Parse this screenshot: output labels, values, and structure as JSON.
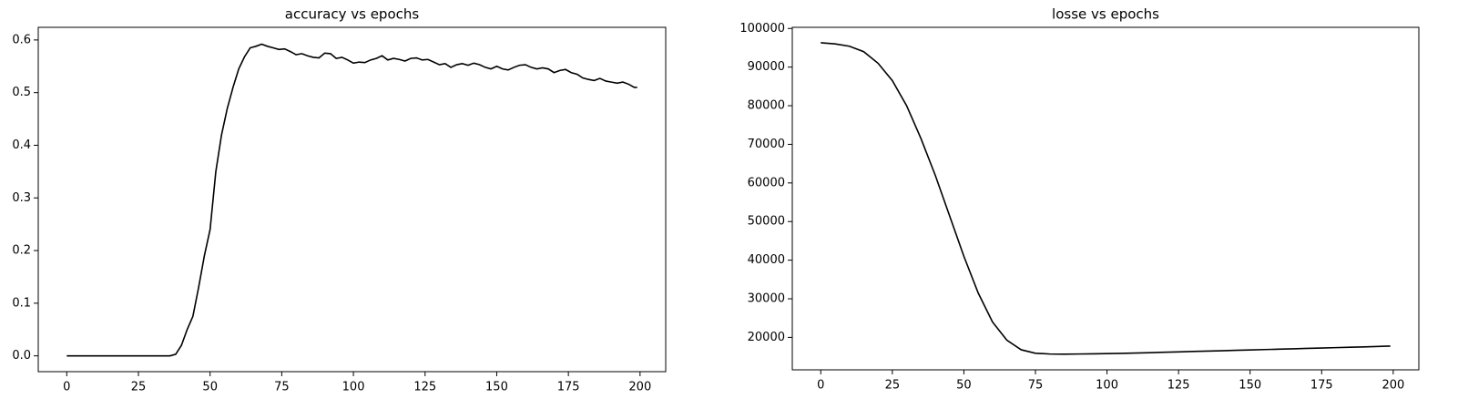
{
  "chart_data": [
    {
      "type": "line",
      "title": "accuracy vs epochs",
      "color": "#000000",
      "grid": false,
      "x": [
        0,
        2,
        4,
        6,
        8,
        10,
        12,
        14,
        16,
        18,
        20,
        22,
        24,
        26,
        28,
        30,
        32,
        34,
        36,
        38,
        40,
        42,
        44,
        46,
        48,
        50,
        52,
        54,
        56,
        58,
        60,
        62,
        64,
        66,
        68,
        70,
        72,
        74,
        76,
        78,
        80,
        82,
        84,
        86,
        88,
        90,
        92,
        94,
        96,
        98,
        100,
        102,
        104,
        106,
        108,
        110,
        112,
        114,
        116,
        118,
        120,
        122,
        124,
        126,
        128,
        130,
        132,
        134,
        136,
        138,
        140,
        142,
        144,
        146,
        148,
        150,
        152,
        154,
        156,
        158,
        160,
        162,
        164,
        166,
        168,
        170,
        172,
        174,
        176,
        178,
        180,
        182,
        184,
        186,
        188,
        190,
        192,
        194,
        196,
        198,
        199
      ],
      "values": [
        0,
        0,
        0,
        0,
        0,
        0,
        0,
        0,
        0,
        0,
        0,
        0,
        0,
        0,
        0,
        0,
        0,
        0,
        0,
        0.003,
        0.02,
        0.05,
        0.075,
        0.13,
        0.19,
        0.24,
        0.35,
        0.42,
        0.47,
        0.51,
        0.545,
        0.568,
        0.585,
        0.588,
        0.592,
        0.588,
        0.585,
        0.582,
        0.583,
        0.578,
        0.572,
        0.574,
        0.57,
        0.567,
        0.566,
        0.575,
        0.574,
        0.565,
        0.567,
        0.562,
        0.556,
        0.558,
        0.557,
        0.562,
        0.565,
        0.57,
        0.562,
        0.565,
        0.563,
        0.56,
        0.565,
        0.566,
        0.562,
        0.563,
        0.558,
        0.553,
        0.555,
        0.548,
        0.553,
        0.555,
        0.552,
        0.556,
        0.553,
        0.548,
        0.545,
        0.55,
        0.545,
        0.543,
        0.548,
        0.552,
        0.553,
        0.548,
        0.545,
        0.547,
        0.545,
        0.538,
        0.542,
        0.544,
        0.538,
        0.535,
        0.528,
        0.525,
        0.523,
        0.527,
        0.522,
        0.52,
        0.518,
        0.52,
        0.516,
        0.51,
        0.51
      ],
      "xlim": [
        -9.95,
        208.95
      ],
      "xticks": [
        0,
        25,
        50,
        75,
        100,
        125,
        150,
        175,
        200
      ],
      "ylim": [
        -0.03,
        0.624
      ],
      "yticks": [
        {
          "value": 0,
          "label": "0.0"
        },
        0.1,
        0.2,
        0.3,
        0.4,
        0.5,
        0.6
      ]
    },
    {
      "type": "line",
      "title": "losse vs epochs",
      "color": "#000000",
      "grid": false,
      "x": [
        0,
        5,
        10,
        15,
        20,
        25,
        30,
        35,
        40,
        45,
        50,
        55,
        60,
        65,
        70,
        75,
        80,
        85,
        90,
        95,
        100,
        105,
        110,
        115,
        120,
        125,
        130,
        135,
        140,
        145,
        150,
        155,
        160,
        165,
        170,
        175,
        180,
        185,
        190,
        195,
        199
      ],
      "values": [
        96300,
        96000,
        95400,
        94000,
        91000,
        86500,
        80000,
        71500,
        62000,
        51500,
        41000,
        31500,
        24000,
        19300,
        16800,
        15900,
        15700,
        15650,
        15700,
        15750,
        15800,
        15850,
        15950,
        16050,
        16150,
        16250,
        16350,
        16450,
        16550,
        16650,
        16750,
        16850,
        16950,
        17050,
        17150,
        17250,
        17350,
        17450,
        17550,
        17650,
        17750
      ],
      "xlim": [
        -9.95,
        208.95
      ],
      "xticks": [
        0,
        25,
        50,
        75,
        100,
        125,
        150,
        175,
        200
      ],
      "ylim": [
        11600,
        100300
      ],
      "yticks": [
        20000,
        30000,
        40000,
        50000,
        60000,
        70000,
        80000,
        90000,
        100000
      ]
    }
  ]
}
